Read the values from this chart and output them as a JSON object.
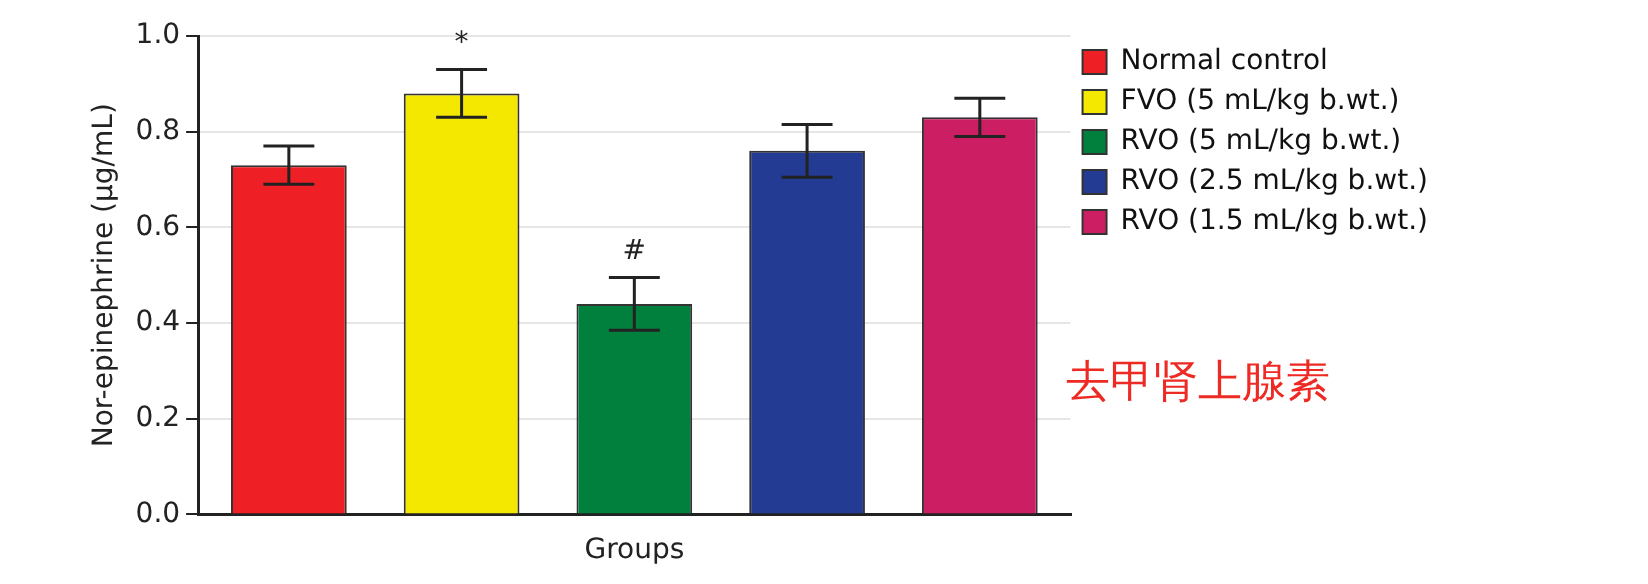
{
  "chart_data": {
    "type": "bar",
    "xlabel": "Groups",
    "ylabel": "Nor-epinephrine (µg/mL)",
    "categories": [
      null
    ],
    "series": [
      {
        "name": "Normal control",
        "color": "#ee1f25",
        "values": [
          0.73
        ],
        "errors": [
          0.04
        ]
      },
      {
        "name": "FVO (5 mL/kg b.wt.)",
        "color": "#f5e800",
        "values": [
          0.88
        ],
        "errors": [
          0.05
        ],
        "value_labels": [
          "*"
        ]
      },
      {
        "name": "RVO (5 mL/kg b.wt.)",
        "color": "#007f3d",
        "values": [
          0.44
        ],
        "errors": [
          0.055
        ],
        "value_labels": [
          "#"
        ]
      },
      {
        "name": "RVO (2.5 mL/kg b.wt.)",
        "color": "#233b93",
        "values": [
          0.76
        ],
        "errors": [
          0.055
        ]
      },
      {
        "name": "RVO (1.5 mL/kg b.wt.)",
        "color": "#cc1f63",
        "values": [
          0.83
        ],
        "errors": [
          0.04
        ]
      }
    ],
    "ylim": [
      0,
      1
    ],
    "yticks": [
      {
        "value": 0,
        "label": "0.0"
      },
      0.2,
      0.4,
      0.6,
      0.8,
      {
        "value": 1,
        "label": "1.0"
      }
    ],
    "grid": "y",
    "legend": "top right",
    "annotations": [
      "去甲肾上腺素"
    ]
  }
}
